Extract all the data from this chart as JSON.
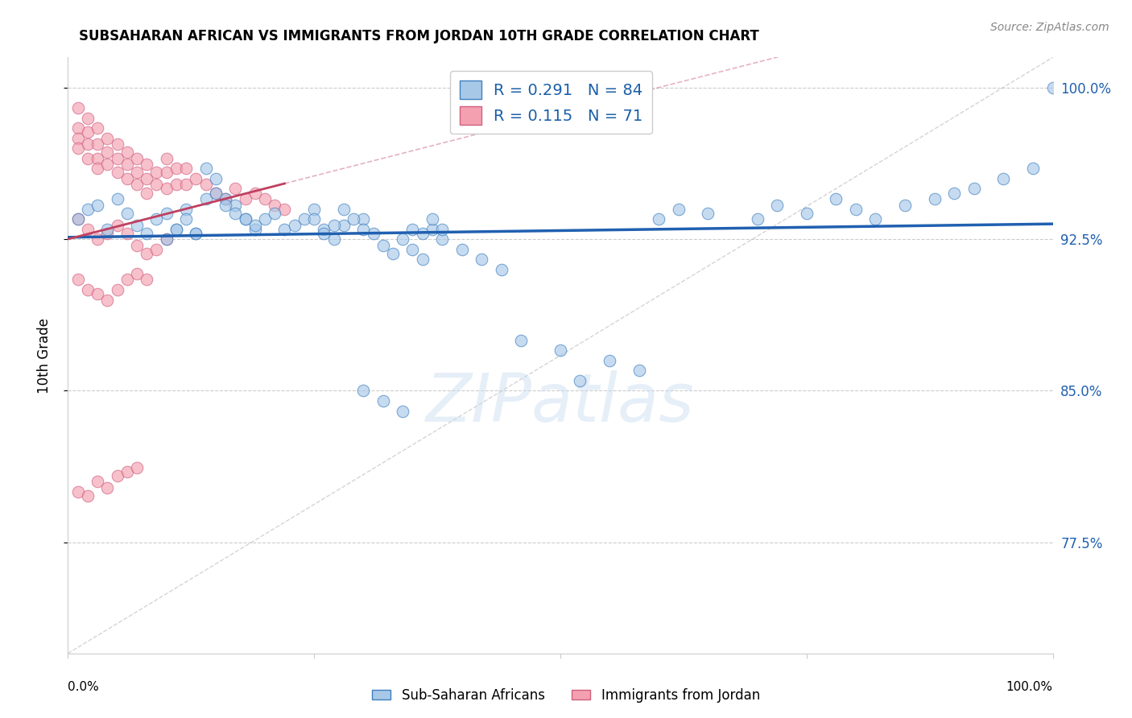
{
  "title": "SUBSAHARAN AFRICAN VS IMMIGRANTS FROM JORDAN 10TH GRADE CORRELATION CHART",
  "source": "Source: ZipAtlas.com",
  "ylabel": "10th Grade",
  "ytick_labels": [
    "100.0%",
    "92.5%",
    "85.0%",
    "77.5%"
  ],
  "ytick_vals": [
    1.0,
    0.925,
    0.85,
    0.775
  ],
  "xlim": [
    0.0,
    1.0
  ],
  "ylim": [
    0.72,
    1.015
  ],
  "legend_blue_R": "0.291",
  "legend_blue_N": "84",
  "legend_pink_R": "0.115",
  "legend_pink_N": "71",
  "blue_fill": "#a8c8e8",
  "blue_edge": "#4080c0",
  "pink_fill": "#f4a0b0",
  "pink_edge": "#d06080",
  "blue_line_color": "#2060b0",
  "pink_line_color": "#c04060",
  "grid_color": "#cccccc",
  "bg_color": "#ffffff",
  "blue_x": [
    0.01,
    0.02,
    0.03,
    0.04,
    0.05,
    0.06,
    0.07,
    0.08,
    0.09,
    0.1,
    0.11,
    0.12,
    0.13,
    0.14,
    0.15,
    0.16,
    0.17,
    0.18,
    0.19,
    0.2,
    0.21,
    0.22,
    0.23,
    0.24,
    0.25,
    0.26,
    0.27,
    0.28,
    0.3,
    0.31,
    0.32,
    0.33,
    0.34,
    0.35,
    0.36,
    0.37,
    0.38,
    0.4,
    0.42,
    0.44,
    0.1,
    0.11,
    0.12,
    0.13,
    0.14,
    0.15,
    0.16,
    0.17,
    0.18,
    0.19,
    0.25,
    0.26,
    0.27,
    0.28,
    0.29,
    0.3,
    0.35,
    0.36,
    0.37,
    0.38,
    0.6,
    0.62,
    0.65,
    0.7,
    0.72,
    0.75,
    0.78,
    0.8,
    0.82,
    0.85,
    0.88,
    0.9,
    0.92,
    0.95,
    0.98,
    1.0,
    0.5,
    0.52,
    0.55,
    0.58,
    0.3,
    0.32,
    0.34,
    0.46
  ],
  "blue_y": [
    0.935,
    0.94,
    0.942,
    0.93,
    0.945,
    0.938,
    0.932,
    0.928,
    0.935,
    0.938,
    0.93,
    0.94,
    0.928,
    0.96,
    0.955,
    0.945,
    0.942,
    0.935,
    0.93,
    0.935,
    0.938,
    0.93,
    0.932,
    0.935,
    0.94,
    0.93,
    0.925,
    0.932,
    0.935,
    0.928,
    0.922,
    0.918,
    0.925,
    0.92,
    0.915,
    0.93,
    0.925,
    0.92,
    0.915,
    0.91,
    0.925,
    0.93,
    0.935,
    0.928,
    0.945,
    0.948,
    0.942,
    0.938,
    0.935,
    0.932,
    0.935,
    0.928,
    0.932,
    0.94,
    0.935,
    0.93,
    0.93,
    0.928,
    0.935,
    0.93,
    0.935,
    0.94,
    0.938,
    0.935,
    0.942,
    0.938,
    0.945,
    0.94,
    0.935,
    0.942,
    0.945,
    0.948,
    0.95,
    0.955,
    0.96,
    1.0,
    0.87,
    0.855,
    0.865,
    0.86,
    0.85,
    0.845,
    0.84,
    0.875
  ],
  "pink_x": [
    0.01,
    0.01,
    0.01,
    0.01,
    0.02,
    0.02,
    0.02,
    0.02,
    0.03,
    0.03,
    0.03,
    0.03,
    0.04,
    0.04,
    0.04,
    0.05,
    0.05,
    0.05,
    0.06,
    0.06,
    0.06,
    0.07,
    0.07,
    0.07,
    0.08,
    0.08,
    0.08,
    0.09,
    0.09,
    0.1,
    0.1,
    0.1,
    0.11,
    0.11,
    0.12,
    0.12,
    0.13,
    0.14,
    0.15,
    0.16,
    0.17,
    0.18,
    0.19,
    0.2,
    0.21,
    0.22,
    0.01,
    0.02,
    0.03,
    0.04,
    0.05,
    0.06,
    0.07,
    0.08,
    0.09,
    0.1,
    0.01,
    0.02,
    0.03,
    0.04,
    0.05,
    0.06,
    0.07,
    0.08,
    0.01,
    0.02,
    0.03,
    0.04,
    0.05,
    0.06,
    0.07
  ],
  "pink_y": [
    0.99,
    0.98,
    0.975,
    0.97,
    0.985,
    0.978,
    0.972,
    0.965,
    0.98,
    0.972,
    0.965,
    0.96,
    0.975,
    0.968,
    0.962,
    0.972,
    0.965,
    0.958,
    0.968,
    0.962,
    0.955,
    0.965,
    0.958,
    0.952,
    0.962,
    0.955,
    0.948,
    0.958,
    0.952,
    0.965,
    0.958,
    0.95,
    0.96,
    0.952,
    0.96,
    0.952,
    0.955,
    0.952,
    0.948,
    0.945,
    0.95,
    0.945,
    0.948,
    0.945,
    0.942,
    0.94,
    0.935,
    0.93,
    0.925,
    0.928,
    0.932,
    0.928,
    0.922,
    0.918,
    0.92,
    0.925,
    0.905,
    0.9,
    0.898,
    0.895,
    0.9,
    0.905,
    0.908,
    0.905,
    0.8,
    0.798,
    0.805,
    0.802,
    0.808,
    0.81,
    0.812
  ]
}
